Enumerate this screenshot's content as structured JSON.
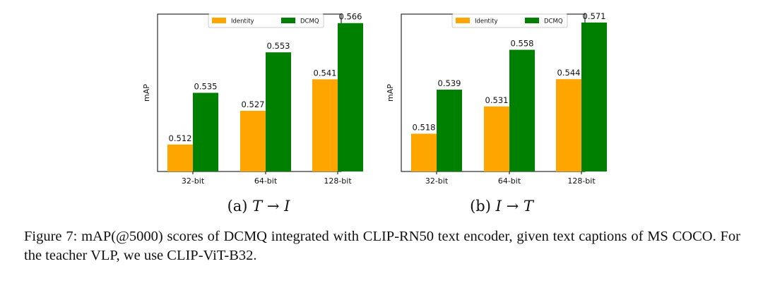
{
  "colors": {
    "identity": "#ffa500",
    "dcmq": "#008000",
    "axis": "#000000"
  },
  "chart_data": [
    {
      "type": "bar",
      "categories": [
        "32-bit",
        "64-bit",
        "128-bit"
      ],
      "series": [
        {
          "name": "Identity",
          "values": [
            0.512,
            0.527,
            0.541
          ]
        },
        {
          "name": "DCMQ",
          "values": [
            0.535,
            0.553,
            0.566
          ]
        }
      ],
      "labels": {
        "Identity": [
          "0.512",
          "0.527",
          "0.541"
        ],
        "DCMQ": [
          "0.535",
          "0.553",
          "0.566"
        ]
      },
      "ylabel": "mAP",
      "xlabel": "",
      "ylim": [
        0.5,
        0.57
      ],
      "legend": "top-center"
    },
    {
      "type": "bar",
      "categories": [
        "32-bit",
        "64-bit",
        "128-bit"
      ],
      "series": [
        {
          "name": "Identity",
          "values": [
            0.518,
            0.531,
            0.544
          ]
        },
        {
          "name": "DCMQ",
          "values": [
            0.539,
            0.558,
            0.571
          ]
        }
      ],
      "labels": {
        "Identity": [
          "0.518",
          "0.531",
          "0.544"
        ],
        "DCMQ": [
          "0.539",
          "0.558",
          "0.571"
        ]
      },
      "ylabel": "mAP",
      "xlabel": "",
      "ylim": [
        0.5,
        0.575
      ],
      "legend": "top-center"
    }
  ],
  "subcaptions": [
    {
      "prefix": "(a)",
      "math": "T → I"
    },
    {
      "prefix": "(b)",
      "math": "I → T"
    }
  ],
  "caption": "Figure 7: mAP(@5000) scores of DCMQ integrated with CLIP-RN50 text encoder, given text captions of MS COCO. For the teacher VLP, we use CLIP-ViT-B32."
}
